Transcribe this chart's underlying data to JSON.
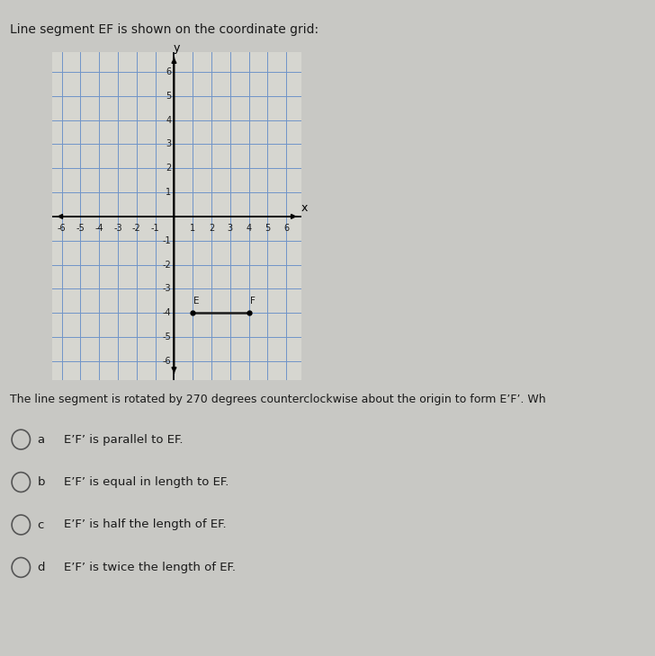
{
  "title": "Line segment EF is shown on the coordinate grid:",
  "subtitle_text": "The line segment is rotated by 270 degrees counterclockwise about the origin to form E’F’. Wh",
  "grid_range": [
    -6,
    6
  ],
  "E": [
    1,
    -4
  ],
  "F": [
    4,
    -4
  ],
  "segment_color": "#1a1a1a",
  "segment_linewidth": 1.8,
  "axis_color": "#000000",
  "grid_color": "#7094c8",
  "grid_linewidth": 0.7,
  "bg_color": "#c8c8c4",
  "plot_bg": "#d6d6d0",
  "options": [
    [
      "a",
      "E’F’ is parallel to EF."
    ],
    [
      "b",
      "E’F’ is equal in length to EF."
    ],
    [
      "c",
      "E’F’ is half the length of EF."
    ],
    [
      "d",
      "E’F’ is twice the length of EF."
    ]
  ]
}
